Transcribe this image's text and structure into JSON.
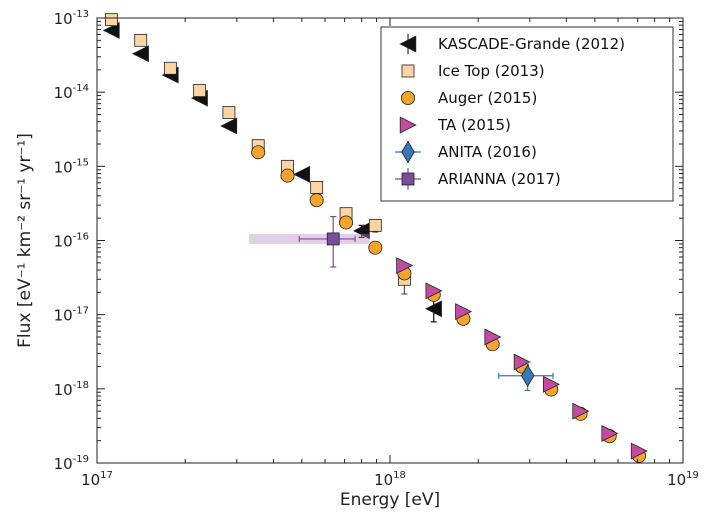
{
  "chart_data": {
    "type": "scatter",
    "title": "",
    "xlabel": "Energy [eV]",
    "ylabel": "Flux [eV⁻¹ km⁻² sr⁻¹ yr⁻¹]",
    "xscale": "log",
    "yscale": "log",
    "xlim": [
      1e+17,
      1e+19
    ],
    "ylim": [
      1e-19,
      1e-13
    ],
    "x_ticks": [
      {
        "value": 1e+17,
        "base": "10",
        "exp": "17"
      },
      {
        "value": 1e+18,
        "base": "10",
        "exp": "18"
      },
      {
        "value": 1e+19,
        "base": "10",
        "exp": "19"
      }
    ],
    "y_ticks": [
      {
        "value": 1e-13,
        "base": "10",
        "exp": "-13"
      },
      {
        "value": 1e-14,
        "base": "10",
        "exp": "-14"
      },
      {
        "value": 1e-15,
        "base": "10",
        "exp": "-15"
      },
      {
        "value": 1e-16,
        "base": "10",
        "exp": "-16"
      },
      {
        "value": 1e-17,
        "base": "10",
        "exp": "-17"
      },
      {
        "value": 1e-18,
        "base": "10",
        "exp": "-18"
      },
      {
        "value": 1e-19,
        "base": "10",
        "exp": "-19"
      }
    ],
    "legend_position": "top-right",
    "series": [
      {
        "name": "KASCADE-Grande (2012)",
        "marker": "triangle-left",
        "color": "#111111",
        "points": [
          {
            "x": 1.12e+17,
            "y": 6.8e-14
          },
          {
            "x": 1.41e+17,
            "y": 3.3e-14
          },
          {
            "x": 1.78e+17,
            "y": 1.7e-14
          },
          {
            "x": 2.24e+17,
            "y": 8.3e-15
          },
          {
            "x": 2.82e+17,
            "y": 3.5e-15
          },
          {
            "x": 5e+17,
            "y": 7.8e-16
          },
          {
            "x": 8e+17,
            "y": 1.35e-16,
            "ylo": 1.1e-16,
            "yhi": 1.6e-16
          },
          {
            "x": 1.41e+18,
            "y": 1.2e-17,
            "ylo": 8e-18,
            "yhi": 1.6e-17
          }
        ]
      },
      {
        "name": "Ice Top (2013)",
        "marker": "square",
        "color": "#fdd5a5",
        "points": [
          {
            "x": 1.12e+17,
            "y": 9.5e-14
          },
          {
            "x": 1.41e+17,
            "y": 5e-14
          },
          {
            "x": 1.78e+17,
            "y": 2.1e-14
          },
          {
            "x": 2.24e+17,
            "y": 1.05e-14
          },
          {
            "x": 2.82e+17,
            "y": 5.3e-15
          },
          {
            "x": 3.55e+17,
            "y": 1.9e-15
          },
          {
            "x": 4.47e+17,
            "y": 1e-15
          },
          {
            "x": 5.62e+17,
            "y": 5.2e-16
          },
          {
            "x": 7.08e+17,
            "y": 2.3e-16,
            "ylo": 2e-16,
            "yhi": 2.6e-16
          },
          {
            "x": 8.91e+17,
            "y": 1.6e-16,
            "ylo": 1.3e-16,
            "yhi": 1.9e-16
          },
          {
            "x": 1.12e+18,
            "y": 3e-17,
            "ylo": 1.9e-17,
            "yhi": 4.3e-17
          }
        ]
      },
      {
        "name": "Auger (2015)",
        "marker": "circle",
        "color": "#f4a42a",
        "points": [
          {
            "x": 3.55e+17,
            "y": 1.55e-15
          },
          {
            "x": 4.47e+17,
            "y": 7.5e-16
          },
          {
            "x": 5.62e+17,
            "y": 3.5e-16
          },
          {
            "x": 7.08e+17,
            "y": 1.75e-16
          },
          {
            "x": 8.91e+17,
            "y": 8e-17
          },
          {
            "x": 1.12e+18,
            "y": 3.6e-17
          },
          {
            "x": 1.41e+18,
            "y": 1.85e-17
          },
          {
            "x": 1.78e+18,
            "y": 8.8e-18
          },
          {
            "x": 2.24e+18,
            "y": 4e-18
          },
          {
            "x": 2.82e+18,
            "y": 2e-18
          },
          {
            "x": 3.55e+18,
            "y": 9.8e-19
          },
          {
            "x": 4.47e+18,
            "y": 4.6e-19
          },
          {
            "x": 5.62e+18,
            "y": 2.3e-19
          },
          {
            "x": 7.08e+18,
            "y": 1.25e-19
          }
        ]
      },
      {
        "name": "TA (2015)",
        "marker": "triangle-right",
        "color": "#c24ca0",
        "points": [
          {
            "x": 1.12e+18,
            "y": 4.6e-17
          },
          {
            "x": 1.41e+18,
            "y": 2.1e-17
          },
          {
            "x": 1.78e+18,
            "y": 1.1e-17
          },
          {
            "x": 2.24e+18,
            "y": 5e-18
          },
          {
            "x": 2.82e+18,
            "y": 2.3e-18
          },
          {
            "x": 3.55e+18,
            "y": 1.15e-18
          },
          {
            "x": 4.47e+18,
            "y": 5e-19
          },
          {
            "x": 5.62e+18,
            "y": 2.5e-19
          },
          {
            "x": 7.08e+18,
            "y": 1.45e-19
          }
        ]
      },
      {
        "name": "ANITA (2016)",
        "marker": "diamond",
        "color": "#3a78b8",
        "points": [
          {
            "x": 2.95e+18,
            "y": 1.5e-18,
            "xlo": 2.35e+18,
            "xhi": 3.6e+18,
            "ylo": 9.5e-19,
            "yhi": 2.3e-18
          }
        ]
      },
      {
        "name": "ARIANNA (2017)",
        "marker": "square",
        "color": "#7b4c9c",
        "points": [
          {
            "x": 6.4e+17,
            "y": 1.05e-16,
            "xlo": 4.9e+17,
            "xhi": 7.6e+17,
            "ylo": 4.4e-17,
            "yhi": 2.1e-16,
            "bandlo": 3.3e+17,
            "bandhi": 8.5e+17
          }
        ]
      }
    ]
  }
}
